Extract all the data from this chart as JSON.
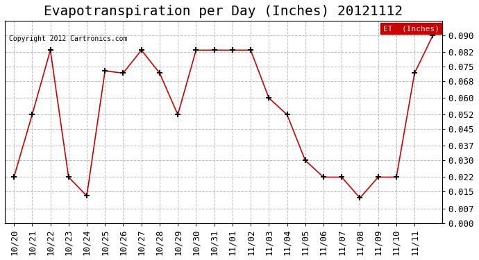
{
  "title": "Evapotranspiration per Day (Inches) 20121112",
  "copyright": "Copyright 2012 Cartronics.com",
  "legend_label": "ET  (Inches)",
  "x_labels": [
    "10/20",
    "10/21",
    "10/22",
    "10/23",
    "10/24",
    "10/25",
    "10/26",
    "10/27",
    "10/28",
    "10/29",
    "10/30",
    "10/31",
    "11/01",
    "11/02",
    "11/03",
    "11/04",
    "11/04",
    "11/05",
    "11/06",
    "11/07",
    "11/08",
    "11/09",
    "11/10",
    "11/11"
  ],
  "x_ticks": [
    "10/20",
    "10/21",
    "10/22",
    "10/23",
    "10/24",
    "10/25",
    "10/26",
    "10/27",
    "10/28",
    "10/29",
    "10/30",
    "10/31",
    "11/01",
    "11/02",
    "11/03",
    "11/04",
    "11/05",
    "11/06",
    "11/07",
    "11/08",
    "11/09",
    "11/10",
    "11/11"
  ],
  "y_values": [
    0.022,
    0.052,
    0.083,
    0.022,
    0.013,
    0.073,
    0.072,
    0.083,
    0.072,
    0.052,
    0.083,
    0.083,
    0.083,
    0.083,
    0.06,
    0.052,
    0.03,
    0.022,
    0.022,
    0.012,
    0.022,
    0.022,
    0.072,
    0.09
  ],
  "ylim": [
    0.0,
    0.097
  ],
  "yticks": [
    0.0,
    0.007,
    0.015,
    0.022,
    0.03,
    0.037,
    0.045,
    0.052,
    0.06,
    0.068,
    0.075,
    0.082,
    0.09
  ],
  "line_color": "#cc0000",
  "marker": "+",
  "marker_color": "#000000",
  "bg_color": "#ffffff",
  "grid_color": "#aaaaaa",
  "title_fontsize": 14,
  "tick_fontsize": 9,
  "legend_bg": "#cc0000",
  "legend_text_color": "#ffffff"
}
